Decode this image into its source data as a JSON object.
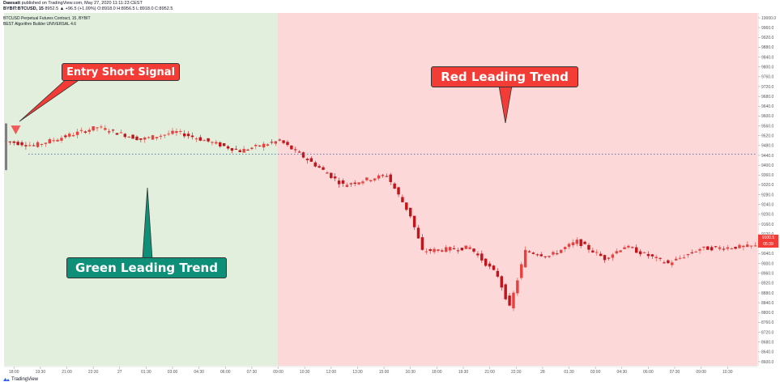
{
  "header": {
    "author": "Dawsatt",
    "published_text": "published on TradingView.com, May 27, 2020 11:11:23 CEST",
    "symbol": "BYBIT:BTCUSD, 15",
    "ohlc_text": "8952.5 ▲ +96.5 (+1.09%) O:8918.0 H:8956.5 L:8918.0 C:8952.5",
    "chart_title": "BTCUSD Perpetual Futures Contract, 15, BYBIT",
    "indicator": "BEST Algorithm Builder UNIVERSAL 4.6"
  },
  "footer": {
    "brand": "TradingView",
    "logo_icon": "tradingview-logo-icon"
  },
  "annotations": {
    "entry_short_signal": "Entry Short Signal",
    "red_leading_trend": "Red Leading Trend",
    "green_leading_trend": "Green Leading Trend"
  },
  "price_tags": {
    "last_price": "9100.5",
    "countdown": "05:39"
  },
  "colors": {
    "green_zone": "#e1efdc",
    "red_zone": "#fdd8d8",
    "candle_up": "#e8413d",
    "candle_down": "#c2141b",
    "dotted_line": "#4a7fd6",
    "callout_red": "#f23c35",
    "callout_green": "#0e8f78"
  },
  "chart_data": {
    "type": "candlestick",
    "y_axis": {
      "min": 8600,
      "max": 10000,
      "ticks": [
        "10000.0",
        "9960.0",
        "9920.0",
        "9880.0",
        "9840.0",
        "9800.0",
        "9760.0",
        "9720.0",
        "9680.0",
        "9640.0",
        "9600.0",
        "9560.0",
        "9520.0",
        "9480.0",
        "9440.0",
        "9400.0",
        "9360.0",
        "9320.0",
        "9280.0",
        "9240.0",
        "9200.0",
        "9160.0",
        "9120.0",
        "9080.0",
        "9040.0",
        "9000.0",
        "8960.0",
        "8920.0",
        "8880.0",
        "8840.0",
        "8800.0",
        "8760.0",
        "8720.0",
        "8680.0",
        "8640.0",
        "8600.0"
      ]
    },
    "x_axis": {
      "ticks": [
        "18:00",
        "19:30",
        "21:00",
        "22:30",
        "27",
        "01:30",
        "03:00",
        "04:30",
        "06:00",
        "07:30",
        "09:00",
        "10:30",
        "12:00",
        "13:30",
        "15:00",
        "16:30",
        "18:00",
        "19:30",
        "21:00",
        "22:30",
        "28",
        "01:30",
        "03:00",
        "04:30",
        "06:00",
        "07:30",
        "09:00",
        "10:30"
      ]
    },
    "zones": [
      {
        "name": "Green Leading Trend",
        "from_candle": 0,
        "to_candle": 69
      },
      {
        "name": "Red Leading Trend",
        "from_candle": 69,
        "to_candle": 190
      }
    ],
    "reference_line": {
      "price": 9445,
      "style": "dotted"
    },
    "signals": [
      {
        "type": "short",
        "label": "Entry Short Signal",
        "candle": 0,
        "price": 9545
      }
    ],
    "last_price": 9100.5,
    "ohlc_segments": [
      {
        "from_candle": 0,
        "to_candle": 8,
        "start": 9500,
        "end": 9480
      },
      {
        "from_candle": 8,
        "to_candle": 24,
        "start": 9480,
        "end": 9555
      },
      {
        "from_candle": 24,
        "to_candle": 35,
        "start": 9555,
        "end": 9505
      },
      {
        "from_candle": 35,
        "to_candle": 44,
        "start": 9505,
        "end": 9535
      },
      {
        "from_candle": 44,
        "to_candle": 60,
        "start": 9535,
        "end": 9458
      },
      {
        "from_candle": 60,
        "to_candle": 70,
        "start": 9458,
        "end": 9500
      },
      {
        "from_candle": 70,
        "to_candle": 80,
        "start": 9500,
        "end": 9390
      },
      {
        "from_candle": 80,
        "to_candle": 86,
        "start": 9390,
        "end": 9320
      },
      {
        "from_candle": 86,
        "to_candle": 97,
        "start": 9320,
        "end": 9360
      },
      {
        "from_candle": 97,
        "to_candle": 103,
        "start": 9360,
        "end": 9195
      },
      {
        "from_candle": 103,
        "to_candle": 106,
        "start": 9195,
        "end": 9050
      },
      {
        "from_candle": 106,
        "to_candle": 118,
        "start": 9050,
        "end": 9065
      },
      {
        "from_candle": 118,
        "to_candle": 125,
        "start": 9065,
        "end": 8950
      },
      {
        "from_candle": 125,
        "to_candle": 128,
        "start": 8950,
        "end": 8820
      },
      {
        "from_candle": 128,
        "to_candle": 132,
        "start": 8820,
        "end": 9050
      },
      {
        "from_candle": 132,
        "to_candle": 138,
        "start": 9050,
        "end": 9030
      },
      {
        "from_candle": 138,
        "to_candle": 145,
        "start": 9030,
        "end": 9090
      },
      {
        "from_candle": 145,
        "to_candle": 152,
        "start": 9090,
        "end": 9020
      },
      {
        "from_candle": 152,
        "to_candle": 157,
        "start": 9020,
        "end": 9070
      },
      {
        "from_candle": 157,
        "to_candle": 168,
        "start": 9070,
        "end": 9000
      },
      {
        "from_candle": 168,
        "to_candle": 176,
        "start": 9000,
        "end": 9060
      },
      {
        "from_candle": 176,
        "to_candle": 190,
        "start": 9060,
        "end": 9070
      }
    ]
  }
}
